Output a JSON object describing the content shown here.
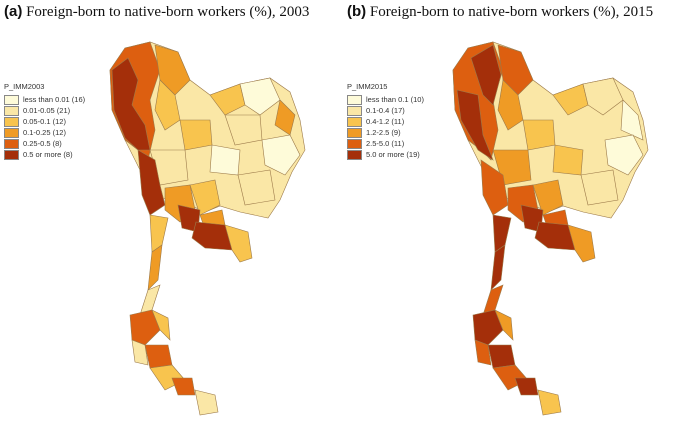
{
  "colors": {
    "border": "#9c7a4a",
    "bin1": "#fefbd9",
    "bin2": "#fae7a6",
    "bin3": "#f8c44e",
    "bin4": "#ef9b25",
    "bin5": "#dd5f10",
    "bin6": "#a42f0a"
  },
  "panels": [
    {
      "tag": "(a)",
      "title": "Foreign-born to native-born workers (%), 2003",
      "legend_title": "P_IMM2003",
      "legend": [
        {
          "label": "less than 0.01 (16)",
          "color": "#fefbd9"
        },
        {
          "label": "0.01-0.05 (21)",
          "color": "#fae7a6"
        },
        {
          "label": "0.05-0.1 (12)",
          "color": "#f8c44e"
        },
        {
          "label": "0.1-0.25 (12)",
          "color": "#ef9b25"
        },
        {
          "label": "0.25-0.5 (8)",
          "color": "#dd5f10"
        },
        {
          "label": "0.5 or more (8)",
          "color": "#a42f0a"
        }
      ]
    },
    {
      "tag": "(b)",
      "title": "Foreign-born to native-born workers (%), 2015",
      "legend_title": "P_IMM2015",
      "legend": [
        {
          "label": "less than 0.1 (10)",
          "color": "#fefbd9"
        },
        {
          "label": "0.1-0.4 (17)",
          "color": "#fae7a6"
        },
        {
          "label": "0.4-1.2 (11)",
          "color": "#f8c44e"
        },
        {
          "label": "1.2-2.5 (9)",
          "color": "#ef9b25"
        },
        {
          "label": "2.5-5.0 (11)",
          "color": "#dd5f10"
        },
        {
          "label": "5.0 or more (19)",
          "color": "#a42f0a"
        }
      ]
    }
  ]
}
